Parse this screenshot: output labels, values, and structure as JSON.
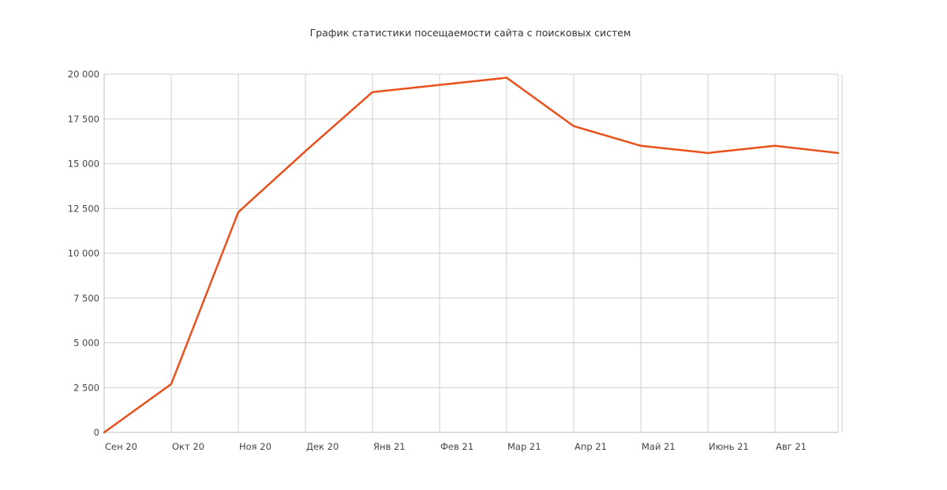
{
  "chart_data": {
    "type": "line",
    "title": "График статистики посещаемости сайта с поисковых систем",
    "xlabel": "",
    "ylabel": "",
    "categories": [
      "Сен 20",
      "Окт 20",
      "Ноя 20",
      "Дек 20",
      "Янв 21",
      "Фев 21",
      "Мар 21",
      "Апр 21",
      "Май 21",
      "Июнь 21",
      "Авг 21",
      ""
    ],
    "series": [
      {
        "values": [
          0,
          2700,
          12300,
          15700,
          19000,
          19400,
          19800,
          17100,
          16000,
          15600,
          16000,
          15600
        ]
      }
    ],
    "ylim": [
      0,
      20000
    ],
    "yticks": [
      0,
      2500,
      5000,
      7500,
      10000,
      12500,
      15000,
      17500,
      20000
    ],
    "ytick_labels": [
      "0",
      "2 500",
      "5 000",
      "7 500",
      "10 000",
      "12 500",
      "15 000",
      "17 500",
      "20 000"
    ],
    "grid": true,
    "legend": "none",
    "colors": {
      "line": "#e8501c",
      "grid": "#cfcfcf",
      "text": "#444444"
    }
  }
}
